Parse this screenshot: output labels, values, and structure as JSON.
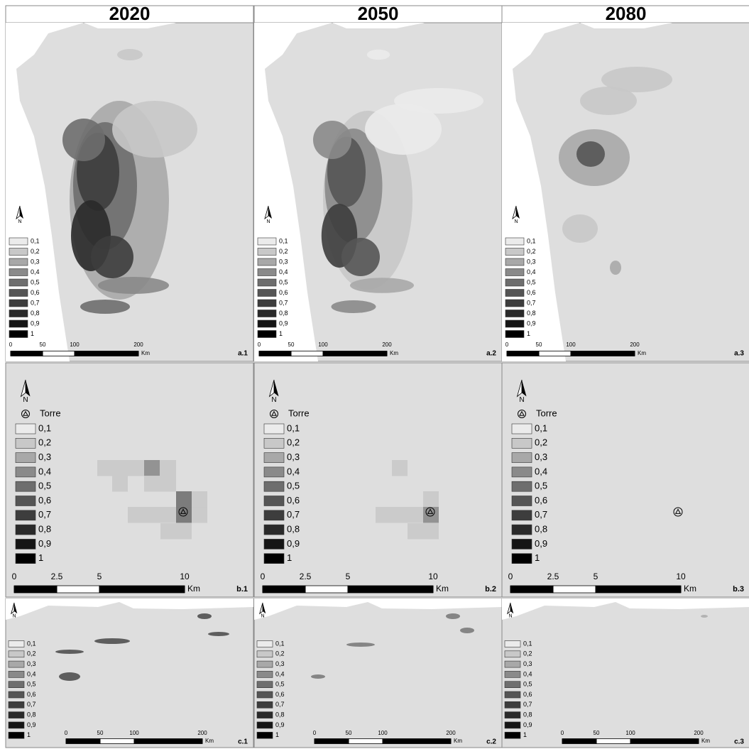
{
  "columns": [
    "2020",
    "2050",
    "2080"
  ],
  "legend": [
    "0,1",
    "0,2",
    "0,3",
    "0,4",
    "0,5",
    "0,6",
    "0,7",
    "0,8",
    "0,9",
    "1"
  ],
  "north": "N",
  "torre": "Torre",
  "scales": {
    "a": {
      "ticks": [
        0,
        50,
        100,
        200
      ],
      "unit": "Km"
    },
    "b": {
      "ticks": [
        0,
        2.5,
        5,
        10
      ],
      "unit": "Km"
    },
    "c": {
      "ticks": [
        0,
        50,
        100,
        200
      ],
      "unit": "Km"
    }
  },
  "panels": [
    [
      "a.1",
      "a.2",
      "a.3"
    ],
    [
      "b.1",
      "b.2",
      "b.3"
    ],
    [
      "c.1",
      "c.2",
      "c.3"
    ]
  ]
}
